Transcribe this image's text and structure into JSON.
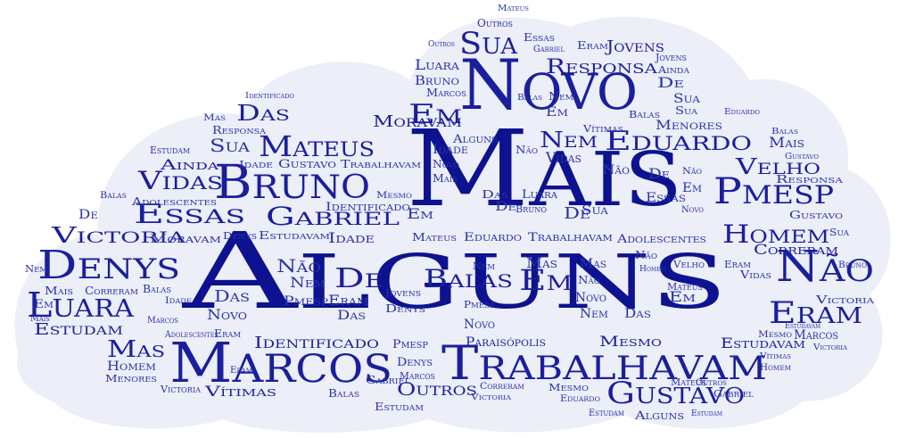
{
  "colors": {
    "background": "#ffffff",
    "cloud": "#eceef8",
    "word": "#1a1f9c"
  },
  "words": {
    "alguns": "Alguns",
    "mais": "Mais",
    "novo": "Novo",
    "marcos": "Marcos",
    "trabalhavam": "Trabalhavam",
    "bruno": "Bruno",
    "denys": "Denys",
    "nao": "Não",
    "pmesp": "Pmesp",
    "eram": "Eram",
    "luara": "Luara",
    "gustavo": "Gustavo",
    "mateus": "Mateus",
    "eduardo": "Eduardo",
    "essas": "Essas",
    "gabriel": "Gabriel",
    "homem": "Homem",
    "vidas": "Vidas",
    "victoria": "Victoria",
    "sua": "Sua",
    "em": "Em",
    "de": "De",
    "nem": "Nem",
    "mas": "Mas",
    "das": "Das",
    "velho": "Velho",
    "responsa": "Responsa",
    "identificado": "Identificado",
    "outros": "Outros",
    "estudavam": "Estudavam",
    "mesmo": "Mesmo",
    "jovens": "Jovens",
    "balas": "Balas",
    "idade": "Idade",
    "moravam": "Moravam",
    "ainda": "Ainda",
    "adolescentes": "Adolescentes",
    "menores": "Menores",
    "vitimas": "Vítimas",
    "paraisopolis": "Paraisópolis",
    "correram": "Correram",
    "estudam": "Estudam"
  }
}
